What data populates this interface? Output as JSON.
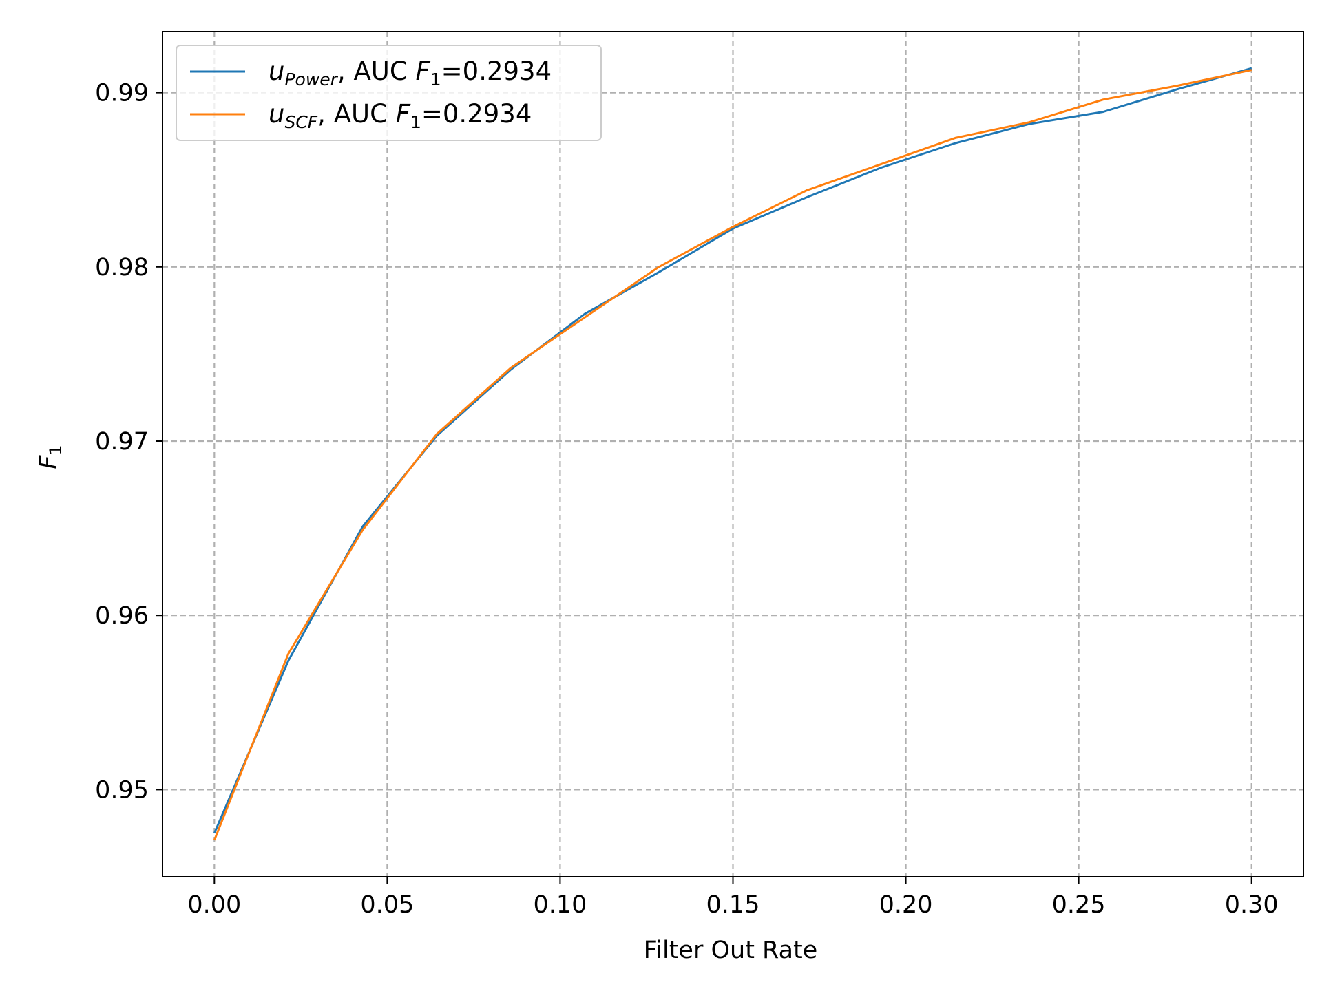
{
  "chart_data": {
    "type": "line",
    "xlabel": "Filter Out Rate",
    "ylabel": "F",
    "ylabel_sub": "1",
    "xlim": [
      -0.015,
      0.315
    ],
    "ylim": [
      0.945,
      0.9935
    ],
    "xticks": [
      0.0,
      0.05,
      0.1,
      0.15,
      0.2,
      0.25,
      0.3
    ],
    "xtick_labels": [
      "0.00",
      "0.05",
      "0.10",
      "0.15",
      "0.20",
      "0.25",
      "0.30"
    ],
    "yticks": [
      0.95,
      0.96,
      0.97,
      0.98,
      0.99
    ],
    "ytick_labels": [
      "0.95",
      "0.96",
      "0.97",
      "0.98",
      "0.99"
    ],
    "grid": true,
    "grid_style": "dashed",
    "legend_position": "upper-left",
    "x": [
      0.0,
      0.0214,
      0.0429,
      0.0643,
      0.0857,
      0.1071,
      0.1286,
      0.15,
      0.1714,
      0.1929,
      0.2143,
      0.2357,
      0.2571,
      0.2786,
      0.3
    ],
    "series": [
      {
        "name": "u_Power, AUC F_1=0.2934",
        "legend": {
          "var": "u",
          "var_sub": "Power",
          "text": ", AUC ",
          "f": "F",
          "f_sub": "1",
          "value": "=0.2934"
        },
        "color": "#1f77b4",
        "values": [
          0.9475,
          0.9574,
          0.9651,
          0.9703,
          0.9741,
          0.9773,
          0.9797,
          0.9822,
          0.984,
          0.9857,
          0.9871,
          0.9882,
          0.9889,
          0.9902,
          0.9914
        ]
      },
      {
        "name": "u_SCF, AUC F_1=0.2934",
        "legend": {
          "var": "u",
          "var_sub": "SCF",
          "text": ", AUC ",
          "f": "F",
          "f_sub": "1",
          "value": "=0.2934"
        },
        "color": "#ff7f0e",
        "values": [
          0.9471,
          0.9578,
          0.9649,
          0.9704,
          0.9742,
          0.9771,
          0.98,
          0.9823,
          0.9844,
          0.9859,
          0.9874,
          0.9883,
          0.9896,
          0.9904,
          0.9913
        ]
      }
    ]
  }
}
